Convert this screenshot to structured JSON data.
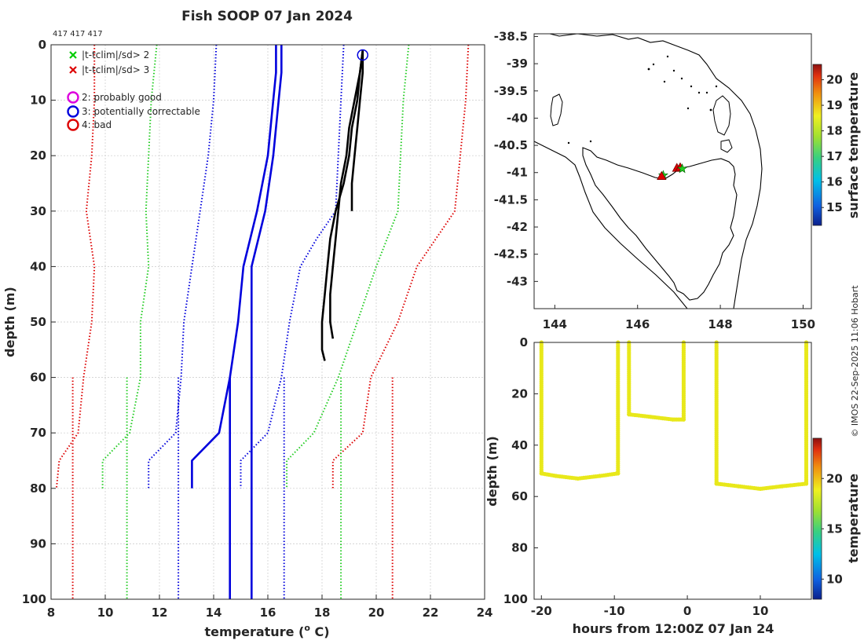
{
  "figure": {
    "title": "Fish SOOP 07 Jan 2024",
    "counts_label": "417 417 417",
    "credit": "© IMOS 22-Sep-2025 11:06 Hobart"
  },
  "profile_panel": {
    "xlabel": "temperature (",
    "xlabel_sup": "o",
    "xlabel_tail": " C)",
    "ylabel": "depth (m)",
    "xlim": [
      8,
      24
    ],
    "ylim": [
      0,
      100
    ],
    "xticks": [
      "8",
      "10",
      "12",
      "14",
      "16",
      "18",
      "20",
      "22",
      "24"
    ],
    "yticks": [
      "0",
      "10",
      "20",
      "30",
      "40",
      "50",
      "60",
      "70",
      "80",
      "90",
      "100"
    ],
    "legend": {
      "items": [
        {
          "marker": "x",
          "color": "#00cc00",
          "label": "|t-tclim|/sd> 2"
        },
        {
          "marker": "x",
          "color": "#dd0000",
          "label": "|t-tclim|/sd> 3"
        },
        {
          "marker": "o",
          "color": "#dd00dd",
          "label": "2: probably good"
        },
        {
          "marker": "o",
          "color": "#0000dd",
          "label": "3: potentially correctable"
        },
        {
          "marker": "o",
          "color": "#dd0000",
          "label": "4: bad"
        }
      ]
    }
  },
  "map_panel": {
    "xlim": [
      143.5,
      150.2
    ],
    "ylim": [
      -43.5,
      -38.45
    ],
    "xticks": [
      "144",
      "146",
      "148",
      "150"
    ],
    "yticks": [
      "-38.5",
      "-39",
      "-39.5",
      "-40",
      "-40.5",
      "-41",
      "-41.5",
      "-42",
      "-42.5",
      "-43"
    ],
    "colorbar_label": "surface temperature",
    "colorbar_ticks": [
      "15",
      "16",
      "17",
      "18",
      "19",
      "20"
    ],
    "colorbar_range": [
      14.3,
      20.6
    ]
  },
  "time_panel": {
    "xlabel": "hours from 12:00Z 07 Jan 24",
    "ylabel": "depth (m)",
    "xlim": [
      -21,
      17
    ],
    "ylim": [
      0,
      100
    ],
    "xticks": [
      "-20",
      "-10",
      "0",
      "10"
    ],
    "yticks": [
      "0",
      "20",
      "40",
      "60",
      "80",
      "100"
    ],
    "colorbar_label": "temperature",
    "colorbar_ticks": [
      "10",
      "15",
      "20"
    ],
    "colorbar_range": [
      8,
      24
    ]
  },
  "chart_data": [
    {
      "type": "line",
      "title": "Fish SOOP 07 Jan 2024",
      "xlabel": "temperature (o C)",
      "ylabel": "depth (m)",
      "xlim": [
        8,
        24
      ],
      "ylim": [
        100,
        0
      ],
      "grid": true,
      "series": [
        {
          "name": "clim -3sd",
          "style": "dotted",
          "color": "#dd0000",
          "points": [
            [
              9.6,
              0
            ],
            [
              9.6,
              10
            ],
            [
              9.5,
              20
            ],
            [
              9.3,
              30
            ],
            [
              9.6,
              40
            ],
            [
              9.5,
              50
            ],
            [
              9.2,
              60
            ],
            [
              9.0,
              70
            ],
            [
              8.3,
              75
            ],
            [
              8.2,
              80
            ]
          ]
        },
        {
          "name": "clim -2sd",
          "style": "dotted",
          "color": "#22cc22",
          "points": [
            [
              11.9,
              0
            ],
            [
              11.7,
              10
            ],
            [
              11.6,
              20
            ],
            [
              11.5,
              30
            ],
            [
              11.6,
              40
            ],
            [
              11.3,
              50
            ],
            [
              11.3,
              60
            ],
            [
              10.9,
              70
            ],
            [
              9.9,
              75
            ],
            [
              9.9,
              80
            ]
          ]
        },
        {
          "name": "clim -1sd",
          "style": "dotted",
          "color": "#0000dd",
          "points": [
            [
              14.1,
              0
            ],
            [
              14.0,
              10
            ],
            [
              13.8,
              20
            ],
            [
              13.5,
              30
            ],
            [
              13.2,
              40
            ],
            [
              12.9,
              50
            ],
            [
              12.8,
              60
            ],
            [
              12.6,
              70
            ],
            [
              11.6,
              75
            ],
            [
              11.6,
              80
            ]
          ]
        },
        {
          "name": "clim mean",
          "style": "solid",
          "color": "#0000dd",
          "points": [
            [
              16.3,
              0
            ],
            [
              16.3,
              5
            ],
            [
              16.2,
              10
            ],
            [
              16.0,
              20
            ],
            [
              15.6,
              30
            ],
            [
              15.1,
              40
            ],
            [
              14.9,
              50
            ],
            [
              14.6,
              60
            ],
            [
              14.2,
              70
            ],
            [
              13.2,
              75
            ],
            [
              13.2,
              80
            ]
          ]
        },
        {
          "name": "clim +1sd",
          "style": "dotted",
          "color": "#0000dd",
          "points": [
            [
              18.8,
              0
            ],
            [
              18.7,
              10
            ],
            [
              18.6,
              20
            ],
            [
              18.5,
              30
            ],
            [
              17.8,
              35
            ],
            [
              17.2,
              40
            ],
            [
              16.8,
              50
            ],
            [
              16.5,
              60
            ],
            [
              16.0,
              70
            ],
            [
              15.0,
              75
            ],
            [
              15.0,
              80
            ]
          ]
        },
        {
          "name": "clim +2sd",
          "style": "dotted",
          "color": "#22cc22",
          "points": [
            [
              21.2,
              0
            ],
            [
              21.0,
              10
            ],
            [
              20.9,
              20
            ],
            [
              20.8,
              30
            ],
            [
              20.0,
              40
            ],
            [
              19.3,
              50
            ],
            [
              18.6,
              60
            ],
            [
              17.7,
              70
            ],
            [
              16.7,
              75
            ],
            [
              16.7,
              80
            ]
          ]
        },
        {
          "name": "clim +3sd",
          "style": "dotted",
          "color": "#dd0000",
          "points": [
            [
              23.4,
              0
            ],
            [
              23.3,
              10
            ],
            [
              23.1,
              20
            ],
            [
              22.9,
              30
            ],
            [
              21.5,
              40
            ],
            [
              20.8,
              50
            ],
            [
              19.8,
              60
            ],
            [
              19.5,
              70
            ],
            [
              18.4,
              75
            ],
            [
              18.4,
              80
            ]
          ]
        },
        {
          "name": "clim mean (deep)",
          "style": "solid",
          "color": "#0000dd",
          "points": [
            [
              14.6,
              60
            ],
            [
              14.6,
              100
            ]
          ]
        },
        {
          "name": "clim median",
          "style": "solid",
          "color": "#0000dd",
          "points": [
            [
              16.5,
              0
            ],
            [
              16.5,
              5
            ],
            [
              16.4,
              10
            ],
            [
              16.2,
              20
            ],
            [
              15.9,
              30
            ],
            [
              15.4,
              40
            ],
            [
              15.4,
              100
            ]
          ]
        },
        {
          "name": "clim deep -3sd",
          "style": "dotted",
          "color": "#dd0000",
          "points": [
            [
              8.8,
              60
            ],
            [
              8.8,
              100
            ]
          ]
        },
        {
          "name": "clim deep -2sd",
          "style": "dotted",
          "color": "#22cc22",
          "points": [
            [
              10.8,
              60
            ],
            [
              10.8,
              100
            ]
          ]
        },
        {
          "name": "clim deep -1sd",
          "style": "dotted",
          "color": "#0000dd",
          "points": [
            [
              12.7,
              60
            ],
            [
              12.7,
              100
            ]
          ]
        },
        {
          "name": "clim deep +1sd",
          "style": "dotted",
          "color": "#0000dd",
          "points": [
            [
              16.6,
              60
            ],
            [
              16.6,
              100
            ]
          ]
        },
        {
          "name": "clim deep +2sd",
          "style": "dotted",
          "color": "#22cc22",
          "points": [
            [
              18.7,
              60
            ],
            [
              18.7,
              100
            ]
          ]
        },
        {
          "name": "clim deep +3sd",
          "style": "dotted",
          "color": "#dd0000",
          "points": [
            [
              20.6,
              60
            ],
            [
              20.6,
              100
            ]
          ]
        },
        {
          "name": "profile 1",
          "style": "solid",
          "color": "#000000",
          "points": [
            [
              19.5,
              1
            ],
            [
              19.4,
              5
            ],
            [
              19.3,
              10
            ],
            [
              19.1,
              15
            ],
            [
              19.0,
              20
            ],
            [
              18.8,
              25
            ],
            [
              18.5,
              30
            ],
            [
              18.3,
              35
            ],
            [
              18.2,
              40
            ],
            [
              18.1,
              45
            ],
            [
              18.0,
              50
            ],
            [
              18.0,
              55
            ],
            [
              18.1,
              57
            ]
          ]
        },
        {
          "name": "profile 2",
          "style": "solid",
          "color": "#000000",
          "points": [
            [
              19.5,
              1
            ],
            [
              19.4,
              5
            ],
            [
              19.2,
              10
            ],
            [
              19.0,
              15
            ],
            [
              18.9,
              20
            ],
            [
              18.7,
              25
            ],
            [
              18.6,
              30
            ],
            [
              18.5,
              35
            ],
            [
              18.4,
              40
            ],
            [
              18.3,
              45
            ],
            [
              18.3,
              50
            ],
            [
              18.4,
              53
            ]
          ]
        },
        {
          "name": "profile 3",
          "style": "solid",
          "color": "#000000",
          "points": [
            [
              19.5,
              1
            ],
            [
              19.5,
              5
            ],
            [
              19.4,
              10
            ],
            [
              19.3,
              15
            ],
            [
              19.2,
              20
            ],
            [
              19.1,
              25
            ],
            [
              19.1,
              28
            ],
            [
              19.1,
              30
            ]
          ]
        }
      ],
      "flags": [
        {
          "label": "3: potentially correctable",
          "x": 19.5,
          "y": 1
        }
      ]
    },
    {
      "type": "scatter",
      "title": "cruise track map",
      "xlim": [
        143.5,
        150.2
      ],
      "ylim": [
        -43.5,
        -38.45
      ],
      "points": [
        {
          "x": 146.62,
          "y": -41.05,
          "marker": "star",
          "color": "#22cc22"
        },
        {
          "x": 146.58,
          "y": -41.07,
          "marker": "triangle",
          "color": "#dd0000"
        },
        {
          "x": 146.95,
          "y": -40.92,
          "marker": "triangle",
          "color": "#dd0000"
        },
        {
          "x": 147.03,
          "y": -40.91,
          "marker": "triangle",
          "color": "#dd0000"
        },
        {
          "x": 147.08,
          "y": -40.93,
          "marker": "star",
          "color": "#22cc22"
        }
      ]
    },
    {
      "type": "scatter",
      "title": "depth vs time",
      "xlabel": "hours from 12:00Z 07 Jan 24",
      "ylabel": "depth (m)",
      "xlim": [
        -21,
        17
      ],
      "ylim": [
        100,
        0
      ],
      "segments": [
        {
          "temperature": 19.5,
          "points": [
            [
              -20.0,
              0
            ],
            [
              -20.0,
              51
            ],
            [
              -18,
              52
            ],
            [
              -15,
              53
            ],
            [
              -12,
              52
            ],
            [
              -9.5,
              51
            ],
            [
              -9.5,
              0
            ]
          ]
        },
        {
          "temperature": 19.6,
          "points": [
            [
              -8.0,
              0
            ],
            [
              -8.0,
              28
            ],
            [
              -5,
              29
            ],
            [
              -2,
              30
            ],
            [
              -0.5,
              30
            ],
            [
              -0.5,
              0
            ]
          ]
        },
        {
          "temperature": 19.7,
          "points": [
            [
              4.0,
              0
            ],
            [
              4.0,
              55
            ],
            [
              7,
              56
            ],
            [
              10,
              57
            ],
            [
              13,
              56
            ],
            [
              16.3,
              55
            ],
            [
              16.3,
              0
            ]
          ]
        }
      ]
    }
  ]
}
